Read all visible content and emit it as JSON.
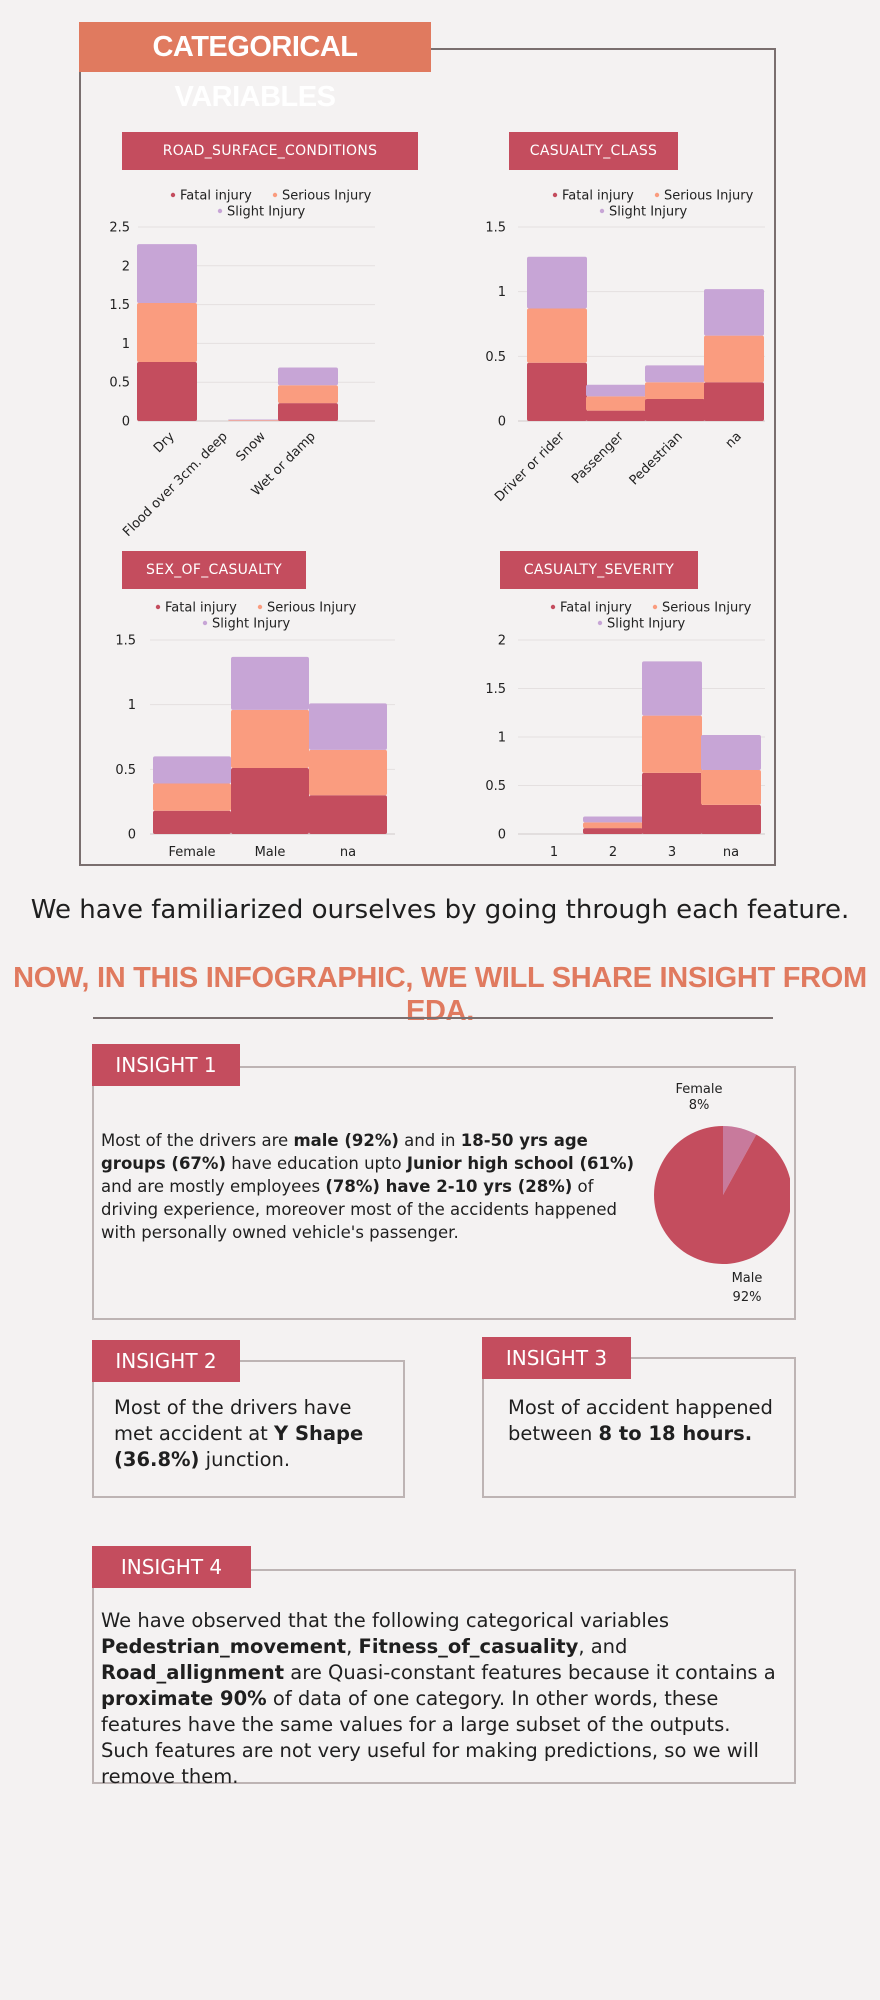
{
  "header": {
    "title": "CATEGORICAL VARIABLES"
  },
  "legend": {
    "fatal": "Fatal injury",
    "serious": "Serious Injury",
    "slight": "Slight Injury"
  },
  "colors": {
    "fatal": "#c44d5e",
    "serious": "#fa9c7f",
    "slight": "#c7a5d6",
    "accent": "#e07a5f",
    "tag": "#c44d5e"
  },
  "chart_data": [
    {
      "type": "bar",
      "stacked": true,
      "title": "ROAD_SURFACE_CONDITIONS",
      "categories": [
        "Dry",
        "Flood over 3cm. deep",
        "Snow",
        "Wet or damp"
      ],
      "series": [
        {
          "name": "Fatal injury",
          "values": [
            0.76,
            0,
            0,
            0.23
          ]
        },
        {
          "name": "Serious Injury",
          "values": [
            0.76,
            0,
            0.01,
            0.23
          ]
        },
        {
          "name": "Slight Injury",
          "values": [
            0.76,
            0,
            0.01,
            0.23
          ]
        }
      ],
      "yticks": [
        "0",
        "0.5",
        "1",
        "1.5",
        "2",
        "2.5"
      ],
      "ylim": [
        0,
        2.5
      ],
      "legend_position": "top",
      "grid": true
    },
    {
      "type": "bar",
      "stacked": true,
      "title": "CASUALTY_CLASS",
      "categories": [
        "Driver or rider",
        "Passenger",
        "Pedestrian",
        "na"
      ],
      "series": [
        {
          "name": "Fatal injury",
          "values": [
            0.45,
            0.08,
            0.17,
            0.3
          ]
        },
        {
          "name": "Serious Injury",
          "values": [
            0.42,
            0.11,
            0.13,
            0.36
          ]
        },
        {
          "name": "Slight Injury",
          "values": [
            0.4,
            0.09,
            0.13,
            0.36
          ]
        }
      ],
      "yticks": [
        "0",
        "0.5",
        "1",
        "1.5"
      ],
      "ylim": [
        0,
        1.5
      ],
      "legend_position": "top",
      "grid": true
    },
    {
      "type": "bar",
      "stacked": true,
      "title": "SEX_OF_CASUALTY",
      "categories": [
        "Female",
        "Male",
        "na"
      ],
      "series": [
        {
          "name": "Fatal injury",
          "values": [
            0.18,
            0.51,
            0.3
          ]
        },
        {
          "name": "Serious Injury",
          "values": [
            0.21,
            0.45,
            0.35
          ]
        },
        {
          "name": "Slight Injury",
          "values": [
            0.21,
            0.41,
            0.36
          ]
        }
      ],
      "yticks": [
        "0",
        "0.5",
        "1",
        "1.5"
      ],
      "ylim": [
        0,
        1.5
      ],
      "legend_position": "top",
      "grid": true
    },
    {
      "type": "bar",
      "stacked": true,
      "title": "CASUALTY_SEVERITY",
      "categories": [
        "1",
        "2",
        "3",
        "na"
      ],
      "series": [
        {
          "name": "Fatal injury",
          "values": [
            0,
            0.06,
            0.63,
            0.3
          ]
        },
        {
          "name": "Serious Injury",
          "values": [
            0,
            0.06,
            0.59,
            0.36
          ]
        },
        {
          "name": "Slight Injury",
          "values": [
            0,
            0.06,
            0.56,
            0.36
          ]
        }
      ],
      "yticks": [
        "0",
        "0.5",
        "1",
        "1.5",
        "2"
      ],
      "ylim": [
        0,
        2
      ],
      "legend_position": "top",
      "grid": true
    },
    {
      "type": "pie",
      "categories": [
        "Female",
        "Male"
      ],
      "values": [
        8,
        92
      ],
      "labels": [
        {
          "name": "Female",
          "pct": "8%"
        },
        {
          "name": "Male",
          "pct": "92%"
        }
      ],
      "colors": [
        "#c87a9c",
        "#c44d5e"
      ]
    }
  ],
  "statement": "We have familiarized ourselves by going through each feature.",
  "eda_heading": "NOW, IN THIS INFOGRAPHIC, WE WILL SHARE INSIGHT FROM EDA.",
  "insight1": {
    "tag": "INSIGHT 1",
    "t1": "Most of the drivers are ",
    "b1": "male (92%)",
    "t2": " and in ",
    "b2": "18-50 yrs age groups (67%)",
    "t3": " have education upto ",
    "b3": "Junior high school (61%)",
    "t4": " and are mostly employees ",
    "b4": "(78%) have 2-10 yrs (28%)",
    "t5": " of driving experience, moreover most of the accidents happened with personally owned vehicle's passenger."
  },
  "insight2": {
    "tag": "INSIGHT 2",
    "t1": "Most of the drivers have met accident at ",
    "b1": "Y Shape (36.8%)",
    "t2": " junction."
  },
  "insight3": {
    "tag": "INSIGHT 3",
    "t1": "Most of accident happened between ",
    "b1": "8 to 18 hours."
  },
  "insight4": {
    "tag": "INSIGHT 4",
    "t1": "We have observed that the following categorical variables ",
    "b1": "Pedestrian_movement",
    "t2": ", ",
    "b2": "Fitness_of_casuality",
    "t3": ", and ",
    "b3": "Road_allignment",
    "t4": " are Quasi-constant features because it contains a ",
    "b4": "proximate 90%",
    "t5": " of data of one category. In other words, these features have the same values for a large subset of the outputs. Such features are not very useful for making predictions, so we will remove them."
  }
}
